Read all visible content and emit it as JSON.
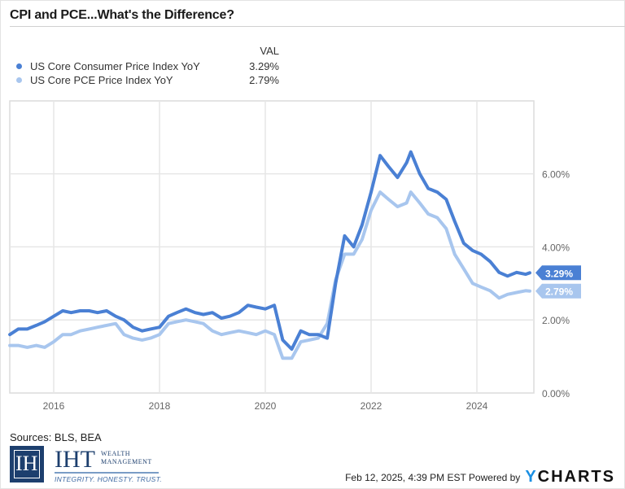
{
  "header": {
    "title": "CPI and PCE...What's the Difference?"
  },
  "legend": {
    "value_header": "VAL",
    "items": [
      {
        "label": "US Core Consumer Price Index YoY",
        "value": "3.29%",
        "color": "#4a80d4"
      },
      {
        "label": "US Core PCE Price Index YoY",
        "value": "2.79%",
        "color": "#a8c6ee"
      }
    ]
  },
  "chart_data": {
    "type": "line",
    "title": "CPI and PCE...What's the Difference?",
    "xlabel": "",
    "ylabel": "",
    "x_ticks": [
      "2016",
      "2018",
      "2020",
      "2022",
      "2024"
    ],
    "y_ticks": [
      "0.00%",
      "2.00%",
      "4.00%",
      "6.00%"
    ],
    "ylim": [
      0,
      7.4
    ],
    "xlim": [
      2015.17,
      2025.1
    ],
    "grid": true,
    "legend_position": "top-left",
    "series": [
      {
        "name": "US Core Consumer Price Index YoY",
        "color": "#4a80d4",
        "last_value": "3.29%",
        "points": [
          [
            2015.17,
            1.6
          ],
          [
            2015.33,
            1.75
          ],
          [
            2015.5,
            1.75
          ],
          [
            2015.67,
            1.85
          ],
          [
            2015.83,
            1.95
          ],
          [
            2016.0,
            2.1
          ],
          [
            2016.17,
            2.25
          ],
          [
            2016.33,
            2.2
          ],
          [
            2016.5,
            2.25
          ],
          [
            2016.67,
            2.25
          ],
          [
            2016.83,
            2.2
          ],
          [
            2017.0,
            2.25
          ],
          [
            2017.17,
            2.1
          ],
          [
            2017.33,
            2.0
          ],
          [
            2017.5,
            1.8
          ],
          [
            2017.67,
            1.7
          ],
          [
            2017.83,
            1.75
          ],
          [
            2018.0,
            1.8
          ],
          [
            2018.17,
            2.1
          ],
          [
            2018.33,
            2.2
          ],
          [
            2018.5,
            2.3
          ],
          [
            2018.67,
            2.2
          ],
          [
            2018.83,
            2.15
          ],
          [
            2019.0,
            2.2
          ],
          [
            2019.17,
            2.05
          ],
          [
            2019.33,
            2.1
          ],
          [
            2019.5,
            2.2
          ],
          [
            2019.67,
            2.4
          ],
          [
            2019.83,
            2.35
          ],
          [
            2020.0,
            2.3
          ],
          [
            2020.17,
            2.4
          ],
          [
            2020.33,
            1.45
          ],
          [
            2020.5,
            1.2
          ],
          [
            2020.67,
            1.7
          ],
          [
            2020.83,
            1.6
          ],
          [
            2021.0,
            1.6
          ],
          [
            2021.17,
            1.5
          ],
          [
            2021.33,
            3.0
          ],
          [
            2021.5,
            4.3
          ],
          [
            2021.67,
            4.0
          ],
          [
            2021.83,
            4.6
          ],
          [
            2022.0,
            5.5
          ],
          [
            2022.17,
            6.5
          ],
          [
            2022.33,
            6.2
          ],
          [
            2022.5,
            5.9
          ],
          [
            2022.67,
            6.3
          ],
          [
            2022.75,
            6.6
          ],
          [
            2022.92,
            6.0
          ],
          [
            2023.08,
            5.6
          ],
          [
            2023.25,
            5.5
          ],
          [
            2023.42,
            5.3
          ],
          [
            2023.58,
            4.7
          ],
          [
            2023.75,
            4.1
          ],
          [
            2023.92,
            3.9
          ],
          [
            2024.08,
            3.8
          ],
          [
            2024.25,
            3.6
          ],
          [
            2024.42,
            3.3
          ],
          [
            2024.58,
            3.2
          ],
          [
            2024.75,
            3.3
          ],
          [
            2024.92,
            3.25
          ],
          [
            2025.0,
            3.29
          ]
        ]
      },
      {
        "name": "US Core PCE Price Index YoY",
        "color": "#a8c6ee",
        "last_value": "2.79%",
        "points": [
          [
            2015.17,
            1.3
          ],
          [
            2015.33,
            1.3
          ],
          [
            2015.5,
            1.25
          ],
          [
            2015.67,
            1.3
          ],
          [
            2015.83,
            1.25
          ],
          [
            2016.0,
            1.4
          ],
          [
            2016.17,
            1.6
          ],
          [
            2016.33,
            1.6
          ],
          [
            2016.5,
            1.7
          ],
          [
            2016.67,
            1.75
          ],
          [
            2016.83,
            1.8
          ],
          [
            2017.0,
            1.85
          ],
          [
            2017.17,
            1.9
          ],
          [
            2017.33,
            1.6
          ],
          [
            2017.5,
            1.5
          ],
          [
            2017.67,
            1.45
          ],
          [
            2017.83,
            1.5
          ],
          [
            2018.0,
            1.6
          ],
          [
            2018.17,
            1.9
          ],
          [
            2018.33,
            1.95
          ],
          [
            2018.5,
            2.0
          ],
          [
            2018.67,
            1.95
          ],
          [
            2018.83,
            1.9
          ],
          [
            2019.0,
            1.7
          ],
          [
            2019.17,
            1.6
          ],
          [
            2019.33,
            1.65
          ],
          [
            2019.5,
            1.7
          ],
          [
            2019.67,
            1.65
          ],
          [
            2019.83,
            1.6
          ],
          [
            2020.0,
            1.7
          ],
          [
            2020.17,
            1.6
          ],
          [
            2020.33,
            0.95
          ],
          [
            2020.5,
            0.95
          ],
          [
            2020.67,
            1.4
          ],
          [
            2020.83,
            1.45
          ],
          [
            2021.0,
            1.5
          ],
          [
            2021.17,
            1.9
          ],
          [
            2021.33,
            3.1
          ],
          [
            2021.5,
            3.8
          ],
          [
            2021.67,
            3.8
          ],
          [
            2021.83,
            4.2
          ],
          [
            2022.0,
            5.0
          ],
          [
            2022.17,
            5.5
          ],
          [
            2022.33,
            5.3
          ],
          [
            2022.5,
            5.1
          ],
          [
            2022.67,
            5.2
          ],
          [
            2022.75,
            5.5
          ],
          [
            2022.92,
            5.2
          ],
          [
            2023.08,
            4.9
          ],
          [
            2023.25,
            4.8
          ],
          [
            2023.42,
            4.5
          ],
          [
            2023.58,
            3.8
          ],
          [
            2023.75,
            3.4
          ],
          [
            2023.92,
            3.0
          ],
          [
            2024.08,
            2.9
          ],
          [
            2024.25,
            2.8
          ],
          [
            2024.42,
            2.6
          ],
          [
            2024.58,
            2.7
          ],
          [
            2024.75,
            2.75
          ],
          [
            2024.92,
            2.8
          ],
          [
            2025.0,
            2.79
          ]
        ]
      }
    ]
  },
  "footer": {
    "sources": "Sources: BLS, BEA",
    "timestamp": "Feb 12, 2025, 4:39 PM EST Powered by",
    "brand_y": "Y",
    "brand_rest": "CHARTS"
  },
  "logo": {
    "mark": "IH",
    "name": "IHT",
    "sub_line1": "WEALTH",
    "sub_line2": "MANAGEMENT",
    "tagline": "INTEGRITY. HONESTY. TRUST."
  }
}
